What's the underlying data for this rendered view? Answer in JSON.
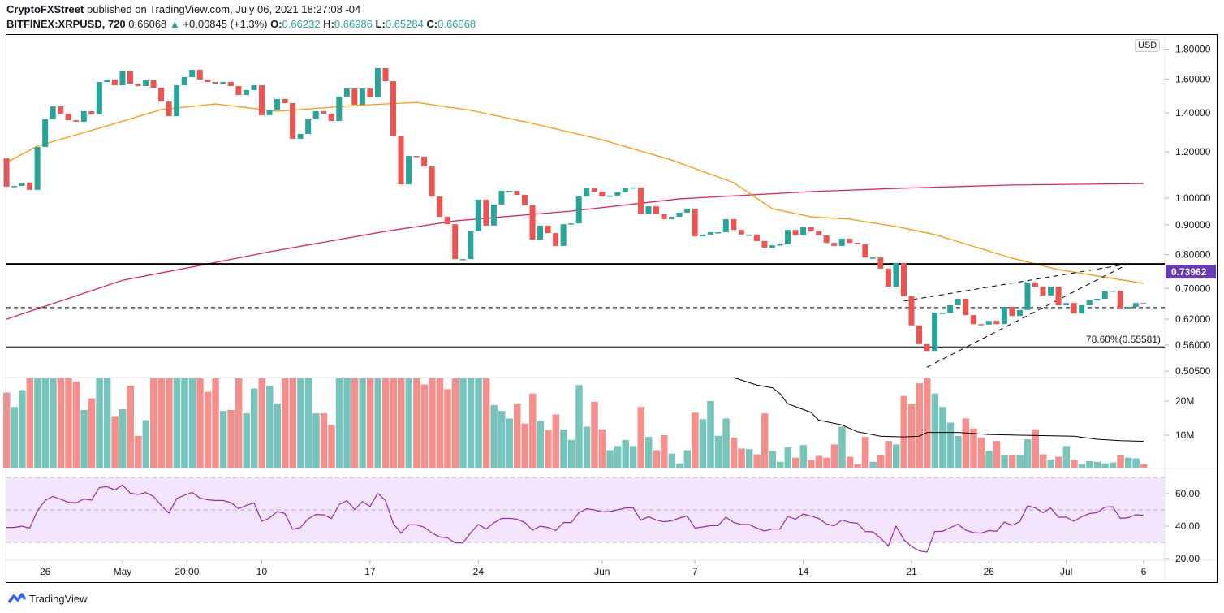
{
  "header": {
    "publisher": "CryptoFXStreet",
    "published_text": "published on TradingView.com, July 06, 2021 18:27:08 -04",
    "symbol": "BITFINEX:XRPUSD, 720",
    "last": "0.66068",
    "change": "+0.00845 (+1.3%)",
    "o_label": "O:",
    "o": "0.66232",
    "h_label": "H:",
    "h": "0.66986",
    "l_label": "L:",
    "l": "0.65284",
    "c_label": "C:",
    "c": "0.66068"
  },
  "currency_badge": "USD",
  "footer": {
    "brand": "TradingView"
  },
  "colors": {
    "up": "#26a69a",
    "down": "#ef5350",
    "vol_up": "#76c5bd",
    "vol_down": "#f68f8c",
    "ma50": "#ff9800",
    "ma200": "#e91e63",
    "rsi": "#9c27b0",
    "rsi_band": "#f3e5fd",
    "price_label": "#673ab7"
  },
  "chart_data": [
    {
      "type": "candlestick",
      "scale": "log",
      "interval": "720",
      "start": "2021-04-23 12:00",
      "first_open": 1.17,
      "close": [
        1.046,
        1.049,
        1.063,
        1.033,
        1.224,
        1.365,
        1.436,
        1.396,
        1.36,
        1.352,
        1.409,
        1.391,
        1.581,
        1.597,
        1.561,
        1.649,
        1.571,
        1.556,
        1.592,
        1.546,
        1.464,
        1.382,
        1.561,
        1.612,
        1.659,
        1.597,
        1.581,
        1.571,
        1.581,
        1.556,
        1.502,
        1.532,
        1.561,
        1.387,
        1.418,
        1.479,
        1.455,
        1.264,
        1.288,
        1.365,
        1.409,
        1.396,
        1.356,
        1.493,
        1.541,
        1.446,
        1.541,
        1.488,
        1.67,
        1.586,
        1.276,
        1.056,
        1.181,
        1.178,
        1.133,
        1.006,
        0.929,
        0.902,
        0.786,
        0.786,
        0.877,
        0.994,
        0.897,
        0.975,
        1.029,
        1.029,
        1.013,
        0.972,
        0.849,
        0.897,
        0.871,
        0.828,
        0.902,
        0.905,
        1.006,
        1.039,
        1.026,
        1.006,
        1.01,
        1.023,
        1.039,
        1.043,
        0.938,
        0.968,
        0.938,
        0.92,
        0.929,
        0.944,
        0.959,
        0.86,
        0.866,
        0.874,
        0.874,
        0.92,
        0.882,
        0.866,
        0.866,
        0.844,
        0.822,
        0.83,
        0.833,
        0.882,
        0.863,
        0.891,
        0.877,
        0.863,
        0.838,
        0.828,
        0.852,
        0.838,
        0.833,
        0.791,
        0.791,
        0.757,
        0.705,
        0.774,
        0.679,
        0.605,
        0.562,
        0.547,
        0.636,
        0.636,
        0.655,
        0.672,
        0.63,
        0.608,
        0.607,
        0.616,
        0.608,
        0.651,
        0.628,
        0.643,
        0.717,
        0.705,
        0.681,
        0.705,
        0.655,
        0.661,
        0.634,
        0.655,
        0.668,
        0.672,
        0.692,
        0.694,
        0.647,
        0.651,
        0.661,
        0.66068
      ],
      "y_ticks": [
        "1.80000",
        "1.60000",
        "1.40000",
        "1.20000",
        "1.00000",
        "0.90000",
        "0.80000",
        "0.70000",
        "0.62000",
        "0.56000",
        "0.50500"
      ],
      "x_ticks": [
        {
          "label": "26",
          "date": "2021-04-26 00:00"
        },
        {
          "label": "May",
          "date": "2021-05-01 00:00"
        },
        {
          "label": "20:00",
          "date": "2021-05-05 04:00"
        },
        {
          "label": "10",
          "date": "2021-05-10 00:00"
        },
        {
          "label": "17",
          "date": "2021-05-17 00:00"
        },
        {
          "label": "24",
          "date": "2021-05-24 00:00"
        },
        {
          "label": "Jun",
          "date": "2021-06-01 00:00"
        },
        {
          "label": "7",
          "date": "2021-06-07 00:00"
        },
        {
          "label": "14",
          "date": "2021-06-14 00:00"
        },
        {
          "label": "21",
          "date": "2021-06-21 00:00"
        },
        {
          "label": "26",
          "date": "2021-06-26 00:00"
        },
        {
          "label": "Jul",
          "date": "2021-07-01 00:00"
        },
        {
          "label": "6",
          "date": "2021-07-06 00:00"
        }
      ],
      "ma50": [
        [
          "2021-04-23 12:00",
          1.151
        ],
        [
          "2021-04-25 12:00",
          1.228
        ],
        [
          "2021-04-30 00:00",
          1.33
        ],
        [
          "2021-05-03 12:00",
          1.418
        ],
        [
          "2021-05-07 00:00",
          1.45
        ],
        [
          "2021-05-11 00:00",
          1.409
        ],
        [
          "2021-05-16 00:00",
          1.441
        ],
        [
          "2021-05-20 00:00",
          1.459
        ],
        [
          "2021-05-23 12:00",
          1.414
        ],
        [
          "2021-05-27 12:00",
          1.343
        ],
        [
          "2021-06-01 00:00",
          1.259
        ],
        [
          "2021-06-05 12:00",
          1.162
        ],
        [
          "2021-06-09 12:00",
          1.063
        ],
        [
          "2021-06-12 00:00",
          0.959
        ],
        [
          "2021-06-14 12:00",
          0.929
        ],
        [
          "2021-06-17 00:00",
          0.92
        ],
        [
          "2021-06-20 00:00",
          0.894
        ],
        [
          "2021-06-22 12:00",
          0.866
        ],
        [
          "2021-06-27 12:00",
          0.789
        ],
        [
          "2021-06-30 12:00",
          0.754
        ],
        [
          "2021-07-06 00:00",
          0.714
        ]
      ],
      "ma200": [
        [
          "2021-04-23 12:00",
          0.62
        ],
        [
          "2021-05-01 00:00",
          0.723
        ],
        [
          "2021-05-06 12:00",
          0.771
        ],
        [
          "2021-05-10 12:00",
          0.809
        ],
        [
          "2021-05-18 00:00",
          0.877
        ],
        [
          "2021-05-22 12:00",
          0.914
        ],
        [
          "2021-05-30 00:00",
          0.95
        ],
        [
          "2021-06-06 00:00",
          0.997
        ],
        [
          "2021-06-14 12:00",
          1.026
        ],
        [
          "2021-06-20 00:00",
          1.039
        ],
        [
          "2021-06-27 12:00",
          1.053
        ],
        [
          "2021-07-06 00:00",
          1.059
        ]
      ],
      "horizontal_levels": {
        "resistance": 0.771,
        "support_dashed": 0.649,
        "fib": 0.55581
      },
      "fib_label": "78.60%(0.55581)",
      "wedge_upper": [
        [
          "2021-06-20 12:00",
          0.666
        ],
        [
          "2021-07-05 00:00",
          0.771
        ]
      ],
      "wedge_lower": [
        [
          "2021-06-22 00:00",
          0.513
        ],
        [
          "2021-07-05 00:00",
          0.771
        ]
      ],
      "price_label": "0.73962"
    },
    {
      "type": "bar",
      "name": "volume",
      "unit": "M",
      "values": [
        22.5,
        18.3,
        23.2,
        30,
        30,
        30,
        30,
        30,
        30,
        25.7,
        17.4,
        20.8,
        30,
        30,
        15.6,
        17.6,
        24.5,
        9.8,
        14.4,
        30,
        30,
        30,
        30,
        30,
        30,
        30,
        22.7,
        30,
        17.1,
        17.4,
        30,
        16.4,
        23.7,
        30,
        24.5,
        19.3,
        30,
        30,
        30,
        30,
        16.4,
        16.4,
        13.0,
        30,
        30,
        30,
        30,
        30,
        30,
        30,
        30,
        30,
        30,
        30,
        24.9,
        30,
        30,
        23.5,
        30,
        30,
        30,
        30,
        30,
        18.8,
        17.1,
        14.9,
        19.3,
        13.4,
        22.2,
        14.2,
        11.5,
        16.1,
        11.7,
        8.6,
        24.7,
        12.5,
        19.8,
        11.7,
        5.6,
        6.8,
        8.6,
        6.8,
        18.3,
        9.5,
        5.6,
        10.0,
        4.6,
        1.7,
        5.6,
        16.6,
        14.7,
        20.0,
        9.8,
        14.9,
        9.3,
        6.1,
        5.9,
        4.4,
        16.4,
        5.4,
        2.2,
        6.4,
        3.4,
        7.1,
        2.7,
        3.9,
        3.4,
        7.3,
        12.5,
        3.7,
        1.5,
        9.5,
        2.2,
        4.2,
        8.3,
        7.3,
        21.5,
        19.1,
        25.2,
        27,
        22.2,
        18.3,
        13.7,
        9.8,
        14.9,
        12.0,
        9.3,
        5.4,
        8.3,
        4.2,
        4.2,
        4.2,
        8.8,
        11.7,
        4.4,
        2.9,
        3.7,
        6.8,
        2.7,
        1.5,
        2.4,
        2.2,
        1.7,
        2.0,
        4.2,
        3.4,
        3.2,
        1.5
      ],
      "ma": [
        [
          "2021-06-09 12:00",
          26.9
        ],
        [
          "2021-06-11 00:00",
          24.7
        ],
        [
          "2021-06-12 00:00",
          23.9
        ],
        [
          "2021-06-12 12:00",
          22.2
        ],
        [
          "2021-06-13 00:00",
          19.2
        ],
        [
          "2021-06-14 12:00",
          16.7
        ],
        [
          "2021-06-15 00:00",
          14.4
        ],
        [
          "2021-06-16 12:00",
          13.0
        ],
        [
          "2021-06-17 12:00",
          11.0
        ],
        [
          "2021-06-19 00:00",
          9.7
        ],
        [
          "2021-06-20 12:00",
          9.5
        ],
        [
          "2021-06-21 12:00",
          9.7
        ],
        [
          "2021-06-22 00:00",
          10.8
        ],
        [
          "2021-06-24 00:00",
          10.8
        ],
        [
          "2021-06-26 00:00",
          10.2
        ],
        [
          "2021-06-28 00:00",
          10.0
        ],
        [
          "2021-07-01 12:00",
          9.7
        ],
        [
          "2021-07-03 00:00",
          8.8
        ],
        [
          "2021-07-04 12:00",
          8.4
        ],
        [
          "2021-07-06 00:00",
          8.2
        ]
      ],
      "y_ticks": [
        "20M",
        "10M"
      ]
    },
    {
      "type": "line",
      "name": "rsi",
      "values": [
        39.2,
        39.2,
        40,
        38.8,
        49.5,
        55.8,
        58.3,
        56.5,
        54.7,
        54.3,
        56.7,
        56,
        63.8,
        64.3,
        62.3,
        65.3,
        60.3,
        59.5,
        60.7,
        58.3,
        52.7,
        48,
        57,
        59,
        60.8,
        57.3,
        56.2,
        55.8,
        55.8,
        54.5,
        50.8,
        52.7,
        54.3,
        43,
        45,
        49,
        47.8,
        38,
        39.2,
        44.5,
        47.2,
        47,
        44.7,
        53.3,
        55.7,
        50.2,
        55,
        52.2,
        60.2,
        55.7,
        41.7,
        35.7,
        40.8,
        40.8,
        39.3,
        35.8,
        33.3,
        32.8,
        29.7,
        29.7,
        35.8,
        41,
        38.2,
        42,
        44.7,
        44.8,
        44.3,
        42.3,
        37.5,
        40,
        39.2,
        37.3,
        42.2,
        42.2,
        48.3,
        50.7,
        50,
        48.8,
        49,
        50,
        51.2,
        51.3,
        43.7,
        45.8,
        43.8,
        42.7,
        43.3,
        45,
        46.3,
        38.8,
        39.5,
        40.3,
        40.3,
        45.5,
        42.3,
        41,
        41,
        38.8,
        37,
        38.2,
        38.2,
        46,
        44.2,
        47.5,
        46.2,
        44.7,
        41.3,
        40.2,
        43.8,
        42.3,
        41.8,
        36.7,
        36.5,
        32.5,
        27.8,
        40,
        31.7,
        27.5,
        24.8,
        24,
        36.7,
        36.8,
        39,
        41.2,
        37.5,
        36,
        35.7,
        37.3,
        36.8,
        42.5,
        40.5,
        42.8,
        52.5,
        51.3,
        48.3,
        51.2,
        45.5,
        45.5,
        43,
        45.8,
        47.8,
        48.3,
        51.7,
        52,
        44.8,
        45.2,
        47,
        46.7
      ],
      "band": [
        30,
        70
      ],
      "y_ticks": [
        "60.00",
        "40.00",
        "20.00"
      ]
    }
  ]
}
